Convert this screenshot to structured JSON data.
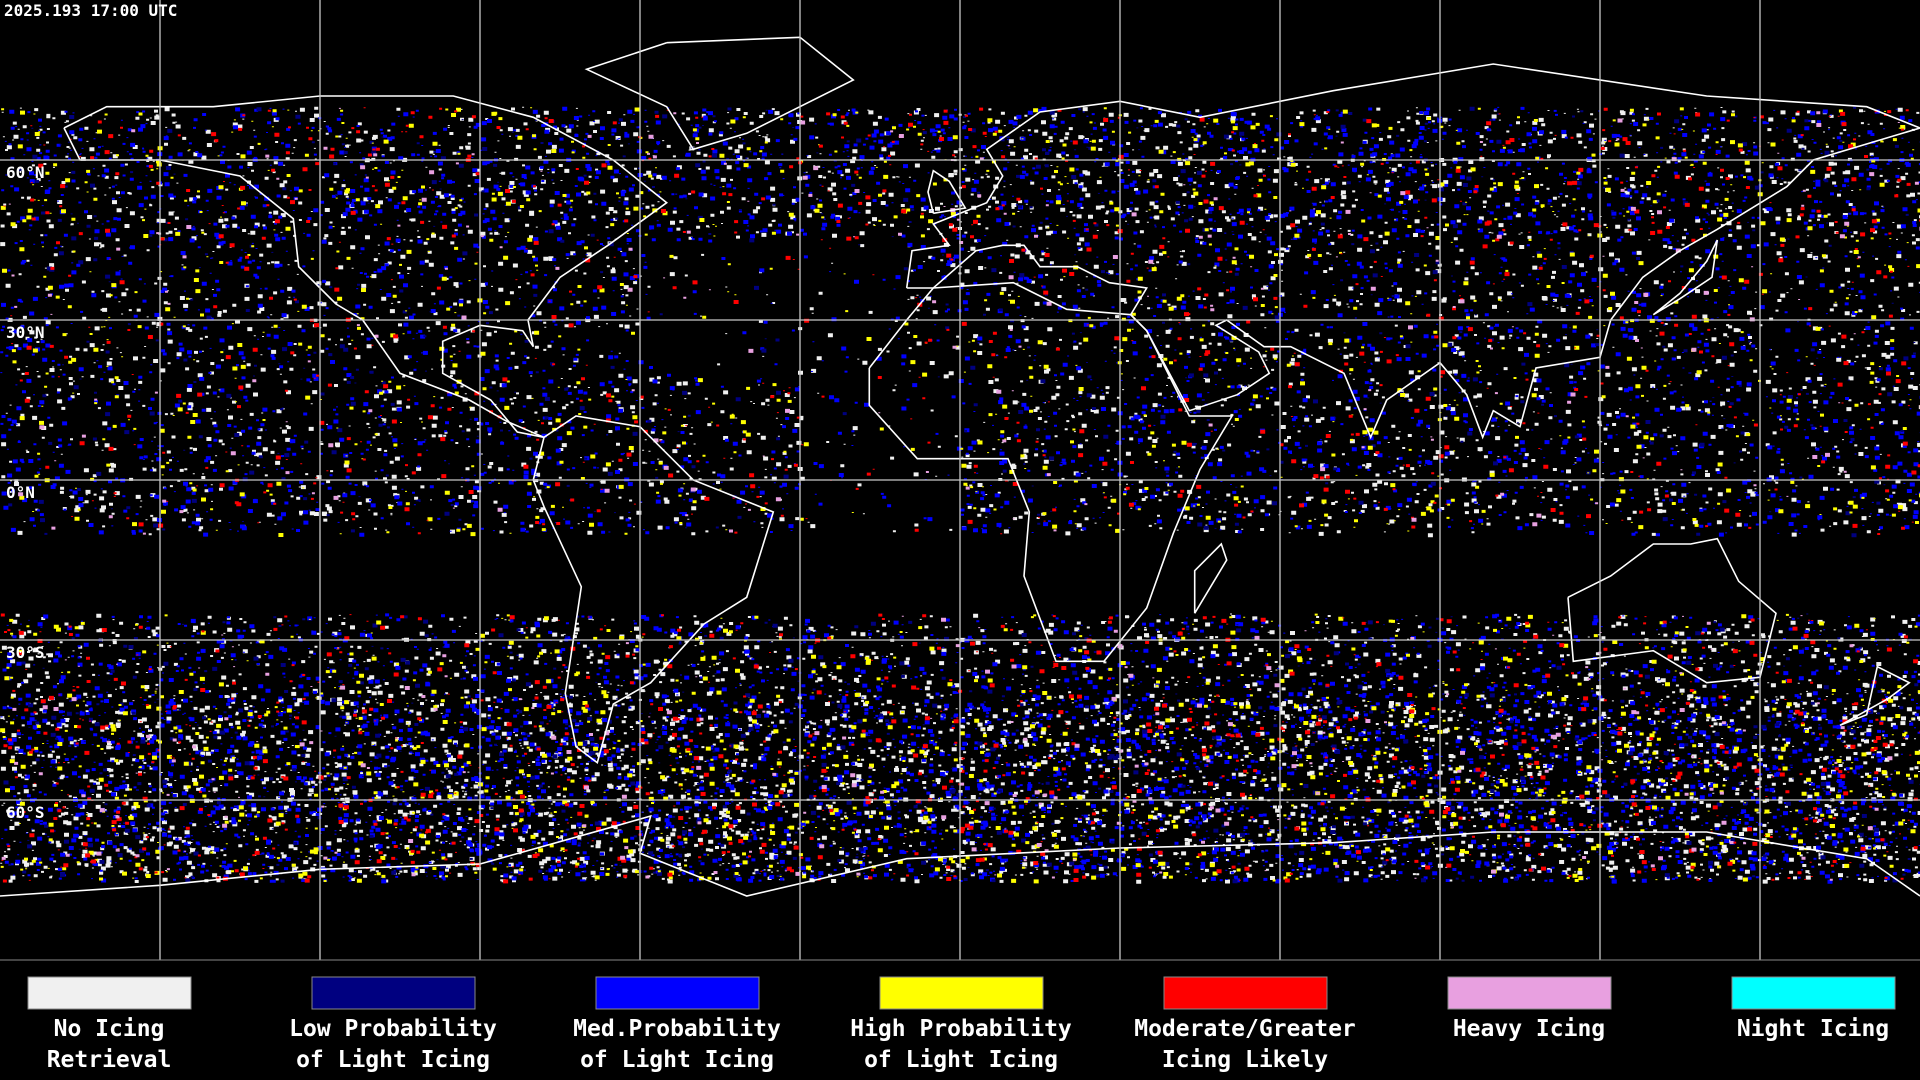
{
  "header": {
    "timestamp": "2025.193 17:00 UTC"
  },
  "lat_labels": [
    "60°N",
    "30°N",
    "0°N",
    "30°S",
    "60°S"
  ],
  "legend": [
    {
      "color": "#f0f0f0",
      "lines": [
        "No Icing",
        "Retrieval"
      ]
    },
    {
      "color": "#000080",
      "lines": [
        "Low Probability",
        "of Light Icing"
      ]
    },
    {
      "color": "#0000ff",
      "lines": [
        "Med.Probability",
        "of Light Icing"
      ]
    },
    {
      "color": "#ffff00",
      "lines": [
        "High Probability",
        "of Light Icing"
      ]
    },
    {
      "color": "#ff0000",
      "lines": [
        "Moderate/Greater",
        "Icing Likely"
      ]
    },
    {
      "color": "#e8a0e0",
      "lines": [
        "Heavy Icing"
      ]
    },
    {
      "color": "#00ffff",
      "lines": [
        "Night Icing"
      ]
    }
  ]
}
